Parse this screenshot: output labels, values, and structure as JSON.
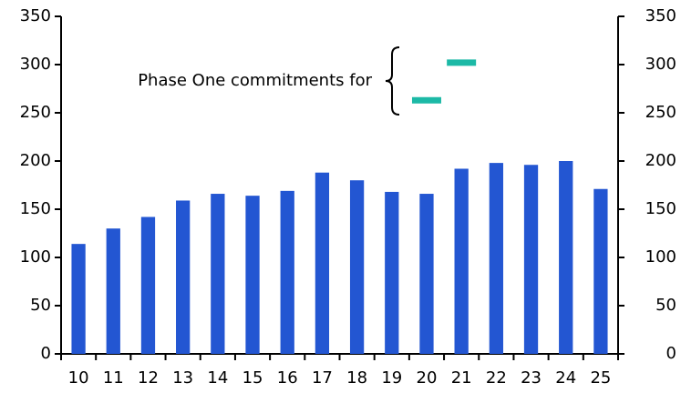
{
  "chart_data": {
    "type": "bar",
    "categories": [
      "10",
      "11",
      "12",
      "13",
      "14",
      "15",
      "16",
      "17",
      "18",
      "19",
      "20",
      "21",
      "22",
      "23",
      "24",
      "25"
    ],
    "series": [
      {
        "color": "#2356d2",
        "values": [
          114,
          130,
          142,
          159,
          166,
          164,
          169,
          188,
          180,
          168,
          166,
          192,
          198,
          196,
          200,
          171
        ]
      },
      {
        "name": "Phase One commitments for",
        "color": "#1cb9a6",
        "marker": "dash",
        "values": [
          null,
          null,
          null,
          null,
          null,
          null,
          null,
          null,
          null,
          null,
          263,
          302,
          null,
          null,
          null,
          null
        ]
      }
    ],
    "ylim": [
      0,
      350
    ],
    "yticks": [
      0,
      50,
      100,
      150,
      200,
      250,
      300,
      350
    ],
    "y2lim": [
      0,
      350
    ],
    "y2ticks": [
      0,
      50,
      100,
      150,
      200,
      250,
      300,
      350
    ],
    "grid": false
  }
}
